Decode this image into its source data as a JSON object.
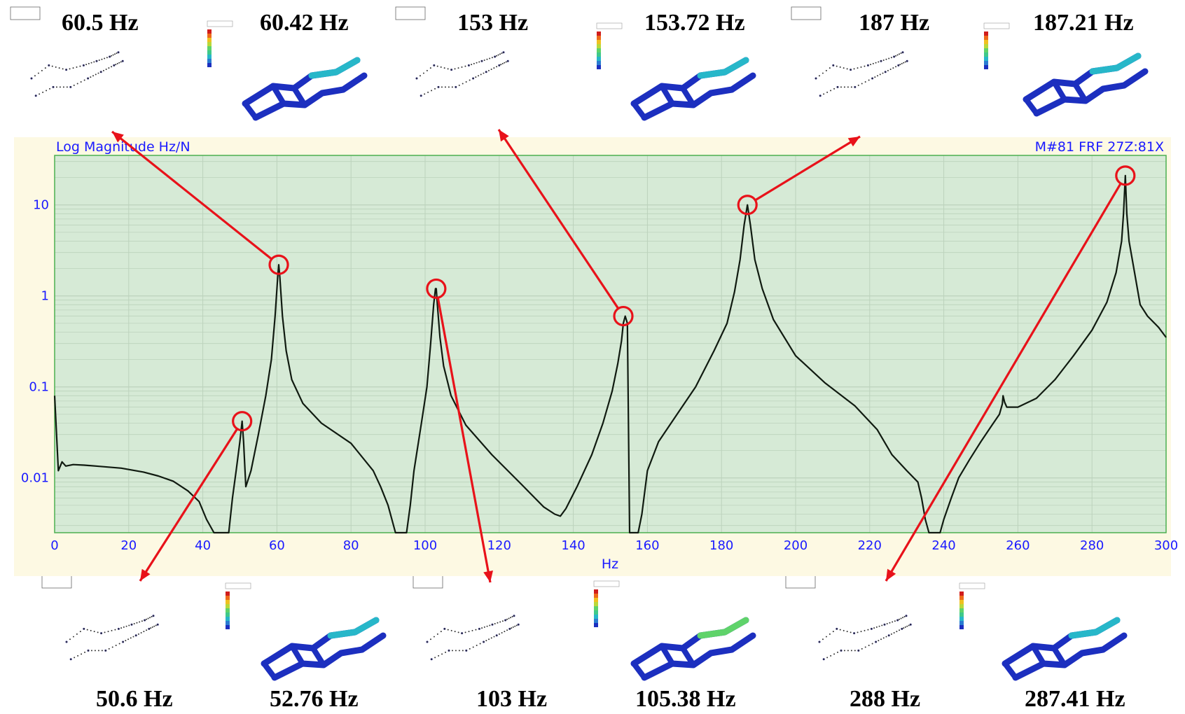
{
  "chart_data": {
    "type": "line",
    "title": "Log Magnitude Hz/N",
    "trace_label": "M#81 FRF 27Z:81X",
    "xlabel": "Hz",
    "ylabel": "Log Magnitude Hz/N",
    "xlim": [
      0,
      300
    ],
    "ylim": [
      0.0025,
      35
    ],
    "yscale": "log",
    "x_ticks": [
      "0",
      "20",
      "40",
      "60",
      "80",
      "100",
      "120",
      "140",
      "160",
      "180",
      "200",
      "220",
      "240",
      "260",
      "280",
      "300"
    ],
    "y_ticks": [
      "0.01",
      "0.1",
      "1",
      "10"
    ],
    "grid": true,
    "series": [
      {
        "x": [
          0,
          1,
          2,
          3,
          5,
          8,
          12,
          18,
          24,
          28,
          32,
          36,
          39,
          41,
          43,
          45,
          47,
          48,
          49,
          50,
          50.6,
          51,
          51.6,
          53,
          55,
          57,
          58.5,
          59.5,
          60.2,
          60.5,
          60.8,
          61.5,
          62.5,
          64,
          67,
          72,
          80,
          86,
          88,
          90,
          92,
          93.5,
          94,
          95,
          96,
          97,
          99,
          100.5,
          101.5,
          102.3,
          102.8,
          103,
          103.3,
          104,
          105,
          107,
          111,
          118,
          126,
          132,
          135,
          136.5,
          138,
          141,
          145,
          148,
          150.5,
          152,
          153,
          153.5,
          154,
          154.6,
          155.2,
          156.3,
          157.5,
          158.5,
          160,
          163,
          168,
          173,
          178,
          181.5,
          183.5,
          185,
          186.1,
          187,
          187.8,
          189,
          191,
          194,
          200,
          208,
          216,
          222,
          226,
          230,
          233,
          234,
          235,
          236,
          237.5,
          239,
          240,
          242,
          244,
          247,
          250,
          253,
          255,
          255.8,
          256,
          256.4,
          257,
          260,
          265,
          270,
          275,
          280,
          284,
          286.5,
          288,
          288.5,
          289,
          289.4,
          290,
          291.5,
          293,
          295,
          298,
          300
        ],
        "y": [
          0.08,
          0.012,
          0.015,
          0.0135,
          0.014,
          0.0138,
          0.0134,
          0.0128,
          0.0116,
          0.0105,
          0.0092,
          0.0072,
          0.0055,
          0.0035,
          0.0025,
          0.0025,
          0.0025,
          0.006,
          0.012,
          0.025,
          0.042,
          0.025,
          0.008,
          0.012,
          0.03,
          0.08,
          0.2,
          0.6,
          1.6,
          2.2,
          1.6,
          0.6,
          0.25,
          0.12,
          0.066,
          0.04,
          0.024,
          0.012,
          0.008,
          0.005,
          0.0025,
          0.0025,
          0.0025,
          0.0025,
          0.005,
          0.012,
          0.04,
          0.1,
          0.3,
          0.8,
          1.2,
          1.2,
          0.8,
          0.35,
          0.17,
          0.08,
          0.038,
          0.018,
          0.0085,
          0.0048,
          0.004,
          0.0038,
          0.0046,
          0.008,
          0.018,
          0.04,
          0.09,
          0.18,
          0.32,
          0.5,
          0.6,
          0.5,
          0.0025,
          0.0025,
          0.0025,
          0.004,
          0.012,
          0.025,
          0.05,
          0.1,
          0.25,
          0.5,
          1.1,
          2.5,
          6,
          10,
          6,
          2.5,
          1.2,
          0.55,
          0.22,
          0.11,
          0.062,
          0.034,
          0.018,
          0.012,
          0.009,
          0.006,
          0.0035,
          0.0025,
          0.0025,
          0.0025,
          0.0035,
          0.006,
          0.01,
          0.016,
          0.025,
          0.038,
          0.05,
          0.065,
          0.08,
          0.068,
          0.06,
          0.06,
          0.075,
          0.12,
          0.22,
          0.42,
          0.85,
          1.8,
          4,
          8,
          21,
          8,
          4,
          1.8,
          0.8,
          0.6,
          0.45,
          0.35
        ]
      }
    ],
    "annotations": [
      {
        "x": 50.6,
        "y": 0.042
      },
      {
        "x": 60.5,
        "y": 2.2
      },
      {
        "x": 103,
        "y": 1.2
      },
      {
        "x": 153.5,
        "y": 0.6
      },
      {
        "x": 187,
        "y": 10
      },
      {
        "x": 289,
        "y": 21
      }
    ]
  },
  "labels": {
    "top": [
      "60.5 Hz",
      "60.42 Hz",
      "153 Hz",
      "153.72 Hz",
      "187 Hz",
      "187.21 Hz"
    ],
    "bottom": [
      "50.6 Hz",
      "52.76 Hz",
      "103 Hz",
      "105.38 Hz",
      "288 Hz",
      "287.41 Hz"
    ]
  },
  "colors": {
    "plot_bg": "#d6ead6",
    "panel_bg": "#fdf9e3",
    "grid": "#bcd2bc",
    "frame": "#4caf50",
    "curve": "#101a10",
    "axis_text": "#1a1aff",
    "marker": "#e8121a",
    "fe_blue": "#1c2fbf",
    "fe_cyan": "#27b7c9",
    "fe_green": "#5fd36a"
  }
}
